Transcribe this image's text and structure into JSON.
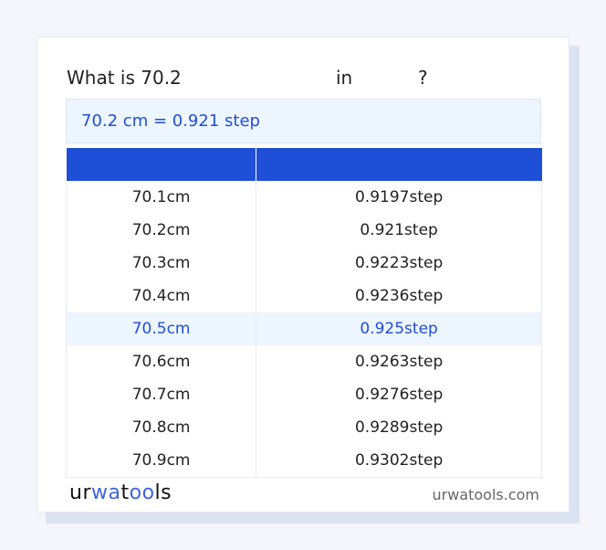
{
  "title": {
    "prefix": "What is 70.2",
    "in": "in",
    "q": "?"
  },
  "result": "70.2 cm = 0.921 step",
  "table": {
    "headers": [
      "",
      ""
    ],
    "rows": [
      [
        "70.1cm",
        "0.9197step"
      ],
      [
        "70.2cm",
        "0.921step"
      ],
      [
        "70.3cm",
        "0.9223step"
      ],
      [
        "70.4cm",
        "0.9236step"
      ],
      [
        "70.5cm",
        "0.925step"
      ],
      [
        "70.6cm",
        "0.9263step"
      ],
      [
        "70.7cm",
        "0.9276step"
      ],
      [
        "70.8cm",
        "0.9289step"
      ],
      [
        "70.9cm",
        "0.9302step"
      ]
    ],
    "highlighted_row": 4
  },
  "footer": {
    "logo": "urwatools",
    "site": "urwatools.com"
  },
  "colors": {
    "accent": "#1f4fd6",
    "highlight_bg": "#edf5fe"
  }
}
